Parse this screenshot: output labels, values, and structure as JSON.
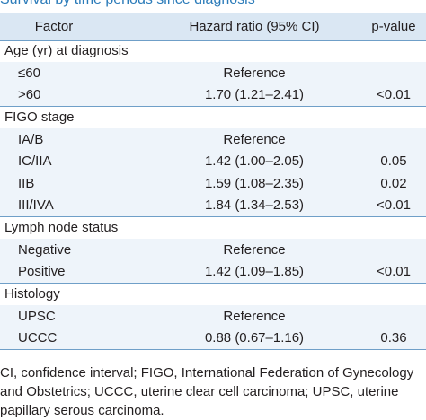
{
  "title": "Survival by time periods since diagnosis",
  "header": [
    "Factor",
    "Hazard ratio (95% CI)",
    "p-value"
  ],
  "groups": [
    {
      "label": "Age (yr) at diagnosis",
      "rows": [
        {
          "factor": "≤60",
          "hr": "Reference"
        },
        {
          "factor": ">60",
          "hr": "1.70 (1.21–2.41)",
          "p": "<0.01"
        }
      ]
    },
    {
      "label": "FIGO stage",
      "rows": [
        {
          "factor": "IA/B",
          "hr": "Reference"
        },
        {
          "factor": "IC/IIA",
          "hr": "1.42 (1.00–2.05)",
          "p": "0.05"
        },
        {
          "factor": "IIB",
          "hr": "1.59 (1.08–2.35)",
          "p": "0.02"
        },
        {
          "factor": "III/IVA",
          "hr": "1.84 (1.34–2.53)",
          "p": "<0.01"
        }
      ]
    },
    {
      "label": "Lymph node status",
      "rows": [
        {
          "factor": "Negative",
          "hr": "Reference"
        },
        {
          "factor": "Positive",
          "hr": "1.42 (1.09–1.85)",
          "p": "<0.01"
        }
      ]
    },
    {
      "label": "Histology",
      "rows": [
        {
          "factor": "UPSC",
          "hr": "Reference"
        },
        {
          "factor": "UCCC",
          "hr": "0.88 (0.67–1.16)",
          "p": "0.36"
        }
      ]
    }
  ],
  "footnote": "CI, confidence interval; FIGO, International Federation of Gynecology and Obstetrics; UCCC, uterine clear cell carcinoma; UPSC, uterine papillary serous carcinoma."
}
